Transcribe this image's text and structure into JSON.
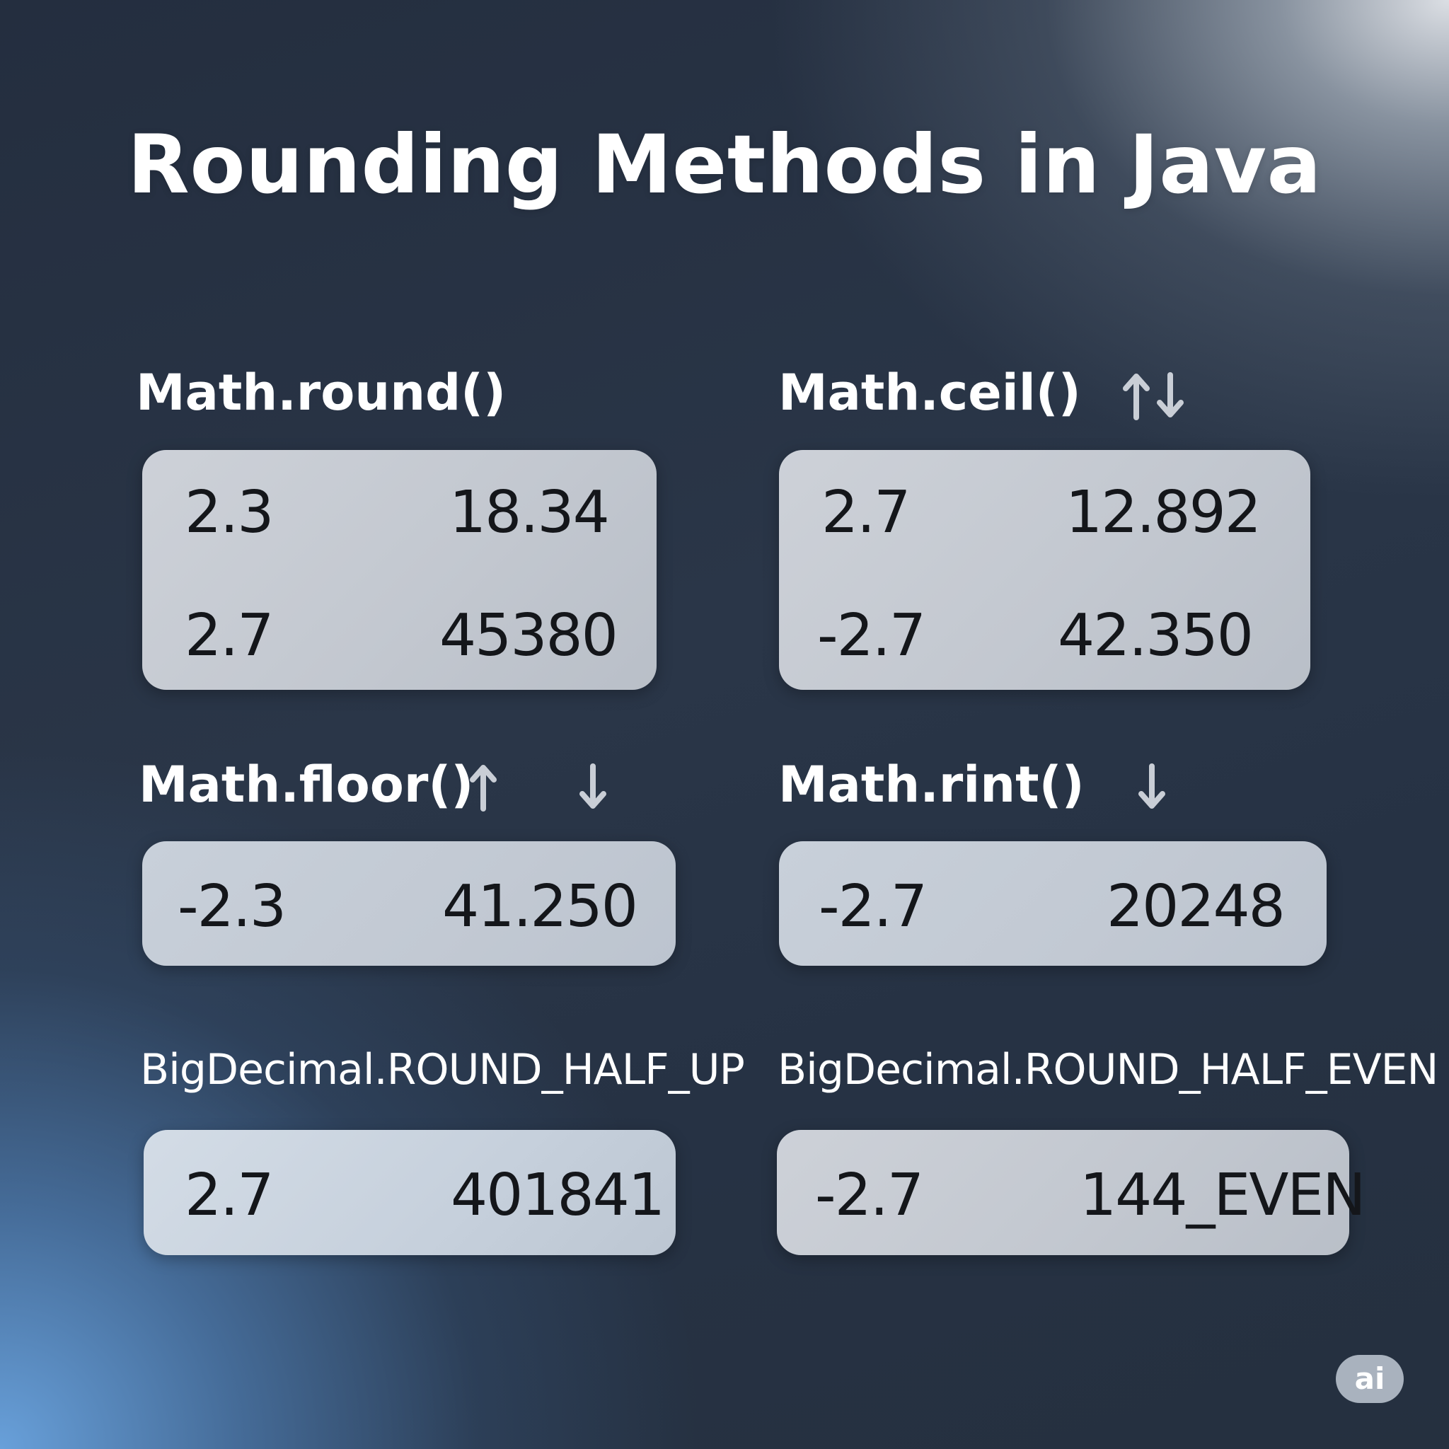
{
  "title": "Rounding Methods in Java",
  "methods": [
    {
      "name": "Math.round()",
      "rows": [
        [
          "2.3",
          "18.34"
        ],
        [
          "2.7",
          "45380"
        ]
      ]
    },
    {
      "name": "Math.ceil()",
      "rows": [
        [
          "2.7",
          "12.892"
        ],
        [
          "-2.7",
          "42.350"
        ]
      ]
    },
    {
      "name": "Math.floor()",
      "rows": [
        [
          "-2.3",
          "41.250"
        ]
      ]
    },
    {
      "name": "Math.rint()",
      "rows": [
        [
          "-2.7",
          "20248"
        ]
      ]
    },
    {
      "name": "BigDecimal.ROUND_HALF_UP",
      "rows": [
        [
          "2.7",
          "401841"
        ]
      ]
    },
    {
      "name": "BigDecimal.ROUND_HALF_EVEN",
      "rows": [
        [
          "-2.7",
          "144_EVEN"
        ]
      ]
    }
  ],
  "icons": [
    "arrow-up-icon",
    "arrow-down-icon"
  ],
  "badge": "ai"
}
